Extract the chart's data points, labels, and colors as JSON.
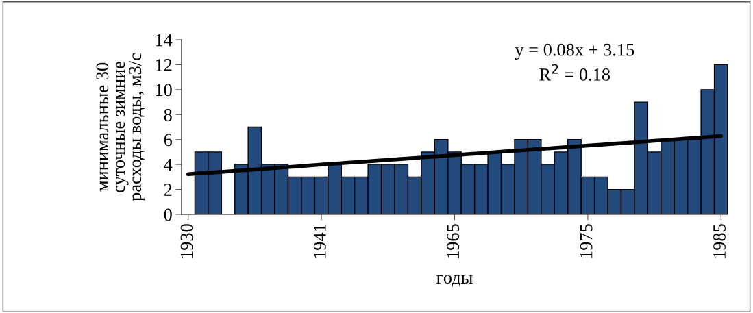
{
  "chart_data": {
    "type": "bar",
    "xlabel": "годы",
    "ylabel": "минимальные 30\nсуточные зимние\nрасходы воды, м3/с",
    "categories": [
      "1930",
      null,
      null,
      null,
      null,
      null,
      null,
      null,
      null,
      null,
      "1941",
      null,
      null,
      null,
      null,
      null,
      null,
      null,
      null,
      null,
      "1965",
      null,
      null,
      null,
      null,
      null,
      null,
      null,
      null,
      null,
      "1975",
      null,
      null,
      null,
      null,
      null,
      null,
      null,
      null,
      null,
      "1985"
    ],
    "series": [
      {
        "color": "#234a7c",
        "values": [
          null,
          5,
          5,
          null,
          4,
          7,
          4,
          4,
          3,
          3,
          3,
          4,
          3,
          3,
          4,
          4,
          4,
          3,
          5,
          6,
          5,
          4,
          4,
          5,
          4,
          6,
          6,
          4,
          5,
          6,
          3,
          3,
          2,
          2,
          9,
          5,
          6,
          6,
          6,
          10,
          12
        ]
      },
      {
        "type": "line",
        "color": "#000000",
        "values": [
          3.22,
          3.3,
          3.37,
          3.45,
          3.53,
          3.6,
          3.68,
          3.76,
          3.83,
          3.91,
          3.99,
          4.06,
          4.14,
          4.21,
          4.29,
          4.37,
          4.44,
          4.52,
          4.6,
          4.67,
          4.75,
          4.83,
          4.9,
          4.98,
          5.06,
          5.13,
          5.21,
          5.29,
          5.36,
          5.44,
          5.52,
          5.59,
          5.67,
          5.74,
          5.82,
          5.9,
          5.97,
          6.05,
          6.13,
          6.2,
          6.28
        ]
      }
    ],
    "ylim": [
      0,
      14
    ],
    "yticks": [
      0,
      2,
      4,
      6,
      8,
      10,
      12,
      14
    ],
    "grid": false,
    "legend": false,
    "annotations": [
      "y = 0.08x + 3.15",
      "R$^{2}$ = 0.18"
    ]
  }
}
